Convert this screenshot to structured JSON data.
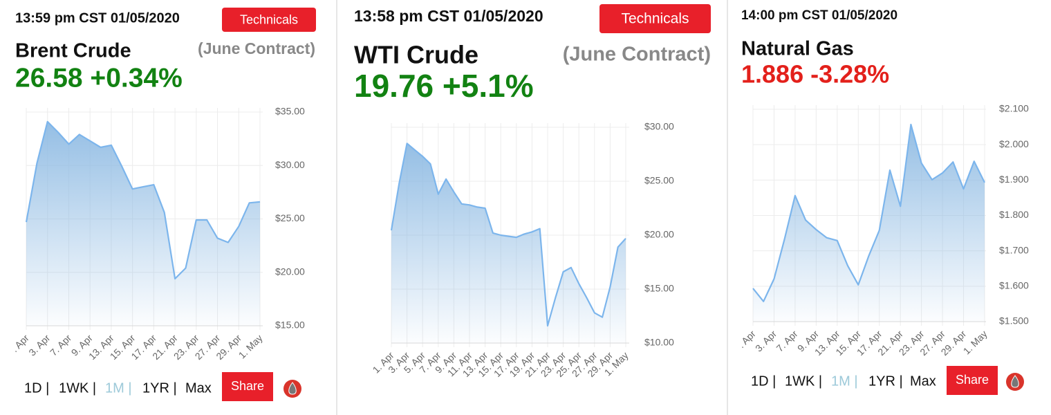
{
  "chart_data": [
    {
      "type": "line",
      "timestamp": "13:59 pm CST 01/05/2020",
      "button": "Technicals",
      "title": "Brent Crude",
      "subtitle": "(June Contract)",
      "price": "26.58 +0.34%",
      "price_color": "#128212",
      "color": "#7cb5ec",
      "categories": [
        ". Apr",
        null,
        "3. Apr",
        null,
        "7. Apr",
        null,
        "9. Apr",
        null,
        "13. Apr",
        null,
        "15. Apr",
        null,
        "17. Apr",
        null,
        "21. Apr",
        null,
        "23. Apr",
        null,
        "27. Apr",
        null,
        "29. Apr",
        null,
        "1. May"
      ],
      "values": [
        24.7,
        30.2,
        34.1,
        33.1,
        32.0,
        32.9,
        32.3,
        31.7,
        31.9,
        29.9,
        27.8,
        28.0,
        28.2,
        25.6,
        19.4,
        20.4,
        24.9,
        24.9,
        23.2,
        22.8,
        24.3,
        26.5,
        26.6
      ],
      "ylim": [
        15,
        35
      ],
      "yticks": [
        {
          "value": 15,
          "label": "$15.00"
        },
        {
          "value": 20,
          "label": "$20.00"
        },
        {
          "value": 25,
          "label": "$25.00"
        },
        {
          "value": 30,
          "label": "$30.00"
        },
        {
          "value": 35,
          "label": "$35.00"
        }
      ],
      "grid": true,
      "controls": [
        "1D |",
        "1WK |",
        "1M |",
        "1YR |",
        "Max"
      ],
      "selected_control": 2,
      "share": "Share"
    },
    {
      "type": "line",
      "timestamp": "13:58 pm CST 01/05/2020",
      "button": "Technicals",
      "title": "WTI Crude",
      "subtitle": "(June Contract)",
      "price": "19.76 +5.1%",
      "price_color": "#128212",
      "color": "#7cb5ec",
      "categories": [
        "1. Apr",
        null,
        "3. Apr",
        null,
        "5. Apr",
        null,
        "7. Apr",
        null,
        "9. Apr",
        null,
        "11. Apr",
        null,
        "13. Apr",
        null,
        "15. Apr",
        null,
        "17. Apr",
        null,
        "19. Apr",
        null,
        "21. Apr",
        null,
        "23. Apr",
        null,
        "25. Apr",
        null,
        "27. Apr",
        null,
        "29. Apr",
        null,
        "1. May"
      ],
      "values": [
        20.45,
        24.8,
        28.5,
        27.9,
        27.3,
        26.6,
        23.8,
        25.2,
        24.0,
        22.9,
        22.8,
        22.6,
        22.5,
        20.2,
        20.0,
        19.9,
        19.8,
        20.1,
        20.3,
        20.6,
        11.6,
        14.2,
        16.6,
        17.0,
        15.5,
        14.2,
        12.8,
        12.4,
        15.2,
        18.9,
        19.7
      ],
      "ylim": [
        10,
        30
      ],
      "yticks": [
        {
          "value": 10,
          "label": "$10.00"
        },
        {
          "value": 15,
          "label": "$15.00"
        },
        {
          "value": 20,
          "label": "$20.00"
        },
        {
          "value": 25,
          "label": "$25.00"
        },
        {
          "value": 30,
          "label": "$30.00"
        }
      ],
      "grid": true
    },
    {
      "type": "line",
      "timestamp": "14:00 pm CST 01/05/2020",
      "title": "Natural Gas",
      "price": "1.886 -3.28%",
      "price_color": "#e3201b",
      "color": "#7cb5ec",
      "categories": [
        ". Apr",
        null,
        "3. Apr",
        null,
        "7. Apr",
        null,
        "9. Apr",
        null,
        "13. Apr",
        null,
        "15. Apr",
        null,
        "17. Apr",
        null,
        "21. Apr",
        null,
        "23. Apr",
        null,
        "27. Apr",
        null,
        "29. Apr",
        null,
        "1. May"
      ],
      "values": [
        1.594,
        1.557,
        1.621,
        1.734,
        1.856,
        1.787,
        1.76,
        1.737,
        1.729,
        1.658,
        1.604,
        1.686,
        1.758,
        1.928,
        1.826,
        2.057,
        1.948,
        1.901,
        1.92,
        1.951,
        1.875,
        1.953,
        1.893
      ],
      "ylim": [
        1.5,
        2.1
      ],
      "yticks": [
        {
          "value": 1.5,
          "label": "$1.500"
        },
        {
          "value": 1.6,
          "label": "$1.600"
        },
        {
          "value": 1.7,
          "label": "$1.700"
        },
        {
          "value": 1.8,
          "label": "$1.800"
        },
        {
          "value": 1.9,
          "label": "$1.900"
        },
        {
          "value": 2.0,
          "label": "$2.000"
        },
        {
          "value": 2.1,
          "label": "$2.100"
        }
      ],
      "grid": true,
      "controls": [
        "1D |",
        "1WK |",
        "1M |",
        "1YR |",
        "Max"
      ],
      "selected_control": 2,
      "share": "Share"
    }
  ]
}
